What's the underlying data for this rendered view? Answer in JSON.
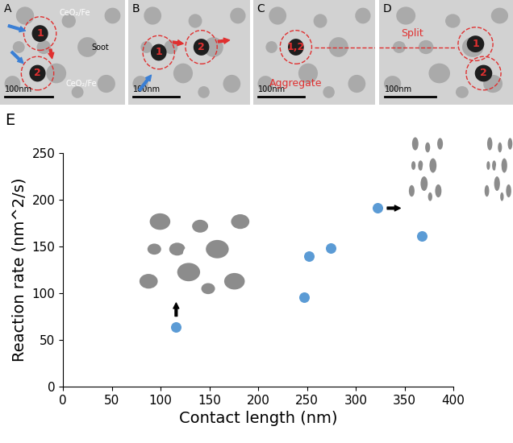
{
  "panels": [
    {
      "label": "A",
      "top_label": "CeO₂/Fe",
      "bottom_label": "CeO₂/Fe",
      "soot_label": "Soot",
      "particles": [
        "1",
        "2"
      ],
      "scale_bar": "100nm"
    },
    {
      "label": "B",
      "particles": [
        "1",
        "2"
      ],
      "scale_bar": "100nm"
    },
    {
      "label": "C",
      "particles": [
        "1,2"
      ],
      "note": "Aggregate",
      "scale_bar": "100nm"
    },
    {
      "label": "D",
      "particles": [
        "1",
        "2"
      ],
      "note": "Split",
      "scale_bar": "100nm"
    }
  ],
  "chart_data": {
    "label": "E",
    "type": "scatter",
    "x": [
      116,
      247,
      252,
      274,
      322,
      368
    ],
    "values": [
      64,
      96,
      140,
      148,
      191,
      161
    ],
    "color": "#5b9bd5",
    "marker": "circle",
    "xlabel": "Contact length (nm)",
    "ylabel": "Reaction rate (nm^2/s)",
    "xlim": [
      0,
      400
    ],
    "xticks": [
      0,
      50,
      100,
      150,
      200,
      250,
      300,
      350,
      400
    ],
    "ylim": [
      0,
      250
    ],
    "yticks": [
      0,
      50,
      100,
      150,
      200,
      250
    ],
    "grid": false
  }
}
